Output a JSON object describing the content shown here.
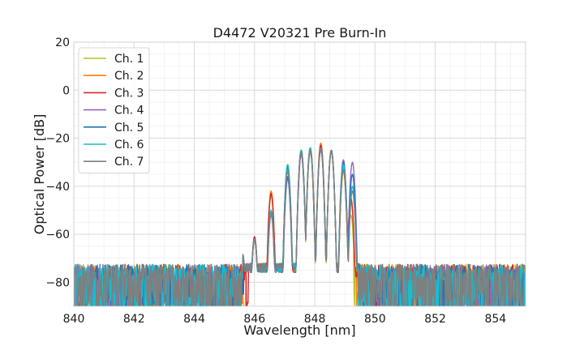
{
  "chart_data": {
    "type": "line",
    "title": "D4472 V20321 Pre Burn-In",
    "xlabel": "Wavelength [nm]",
    "ylabel": "Optical Power [dB]",
    "xlim": [
      840,
      855
    ],
    "ylim": [
      -90,
      20
    ],
    "x_ticks": [
      840,
      842,
      844,
      846,
      848,
      850,
      852,
      854
    ],
    "y_ticks": [
      -80,
      -60,
      -40,
      -20,
      0,
      20
    ],
    "x_tick_labels": [
      "840",
      "842",
      "844",
      "846",
      "848",
      "850",
      "852",
      "854"
    ],
    "y_tick_labels": [
      "−80",
      "−60",
      "−40",
      "−20",
      "0",
      "20"
    ],
    "grid": true,
    "minor_grid": true,
    "legend_position": "top-left",
    "noise_floor_db": -80,
    "series": [
      {
        "name": "Ch. 1",
        "color": "#bcbd22",
        "edges": [
          845.7,
          849.3
        ],
        "peaks": [
          [
            845.6,
            -69
          ],
          [
            846.0,
            -62
          ],
          [
            846.55,
            -44
          ],
          [
            847.1,
            -33
          ],
          [
            847.55,
            -26
          ],
          [
            847.85,
            -26
          ],
          [
            848.2,
            -24
          ],
          [
            848.55,
            -26
          ],
          [
            848.95,
            -34
          ],
          [
            849.2,
            -52
          ]
        ]
      },
      {
        "name": "Ch. 2",
        "color": "#ff7f0e",
        "edges": [
          845.6,
          849.4
        ],
        "peaks": [
          [
            845.6,
            -69
          ],
          [
            846.0,
            -61
          ],
          [
            846.55,
            -42
          ],
          [
            847.1,
            -31
          ],
          [
            847.55,
            -25
          ],
          [
            847.85,
            -24
          ],
          [
            848.2,
            -22
          ],
          [
            848.55,
            -25
          ],
          [
            848.95,
            -32
          ],
          [
            849.2,
            -46
          ]
        ]
      },
      {
        "name": "Ch. 3",
        "color": "#d62728",
        "edges": [
          845.8,
          849.35
        ],
        "peaks": [
          [
            845.6,
            -69
          ],
          [
            846.0,
            -61
          ],
          [
            846.55,
            -43
          ],
          [
            847.1,
            -32
          ],
          [
            847.55,
            -25
          ],
          [
            847.85,
            -25
          ],
          [
            848.2,
            -23
          ],
          [
            848.55,
            -25
          ],
          [
            848.95,
            -33
          ],
          [
            849.2,
            -45
          ]
        ]
      },
      {
        "name": "Ch. 4",
        "color": "#9467bd",
        "edges": [
          845.6,
          849.5
        ],
        "peaks": [
          [
            845.6,
            -68
          ],
          [
            846.0,
            -62
          ],
          [
            846.55,
            -50
          ],
          [
            847.1,
            -37
          ],
          [
            847.55,
            -27
          ],
          [
            847.85,
            -25
          ],
          [
            848.2,
            -25
          ],
          [
            848.55,
            -25
          ],
          [
            848.95,
            -29
          ],
          [
            849.25,
            -30
          ]
        ]
      },
      {
        "name": "Ch. 5",
        "color": "#1f77b4",
        "edges": [
          845.6,
          849.5
        ],
        "peaks": [
          [
            845.6,
            -68
          ],
          [
            846.0,
            -62
          ],
          [
            846.55,
            -51
          ],
          [
            847.1,
            -36
          ],
          [
            847.55,
            -26
          ],
          [
            847.85,
            -24
          ],
          [
            848.2,
            -24
          ],
          [
            848.55,
            -25
          ],
          [
            848.95,
            -30
          ],
          [
            849.25,
            -35
          ]
        ]
      },
      {
        "name": "Ch. 6",
        "color": "#17becf",
        "edges": [
          845.6,
          849.45
        ],
        "peaks": [
          [
            845.6,
            -68
          ],
          [
            846.0,
            -62
          ],
          [
            846.55,
            -50
          ],
          [
            847.1,
            -31
          ],
          [
            847.55,
            -25
          ],
          [
            847.85,
            -24
          ],
          [
            848.2,
            -24
          ],
          [
            848.55,
            -25
          ],
          [
            848.95,
            -31
          ],
          [
            849.25,
            -40
          ]
        ]
      },
      {
        "name": "Ch. 7",
        "color": "#7f7f7f",
        "edges": [
          845.6,
          849.45
        ],
        "peaks": [
          [
            845.6,
            -68
          ],
          [
            846.0,
            -62
          ],
          [
            846.55,
            -52
          ],
          [
            847.1,
            -34
          ],
          [
            847.55,
            -26
          ],
          [
            847.85,
            -25
          ],
          [
            848.2,
            -24
          ],
          [
            848.55,
            -25
          ],
          [
            848.95,
            -33
          ],
          [
            849.25,
            -42
          ]
        ]
      }
    ]
  }
}
